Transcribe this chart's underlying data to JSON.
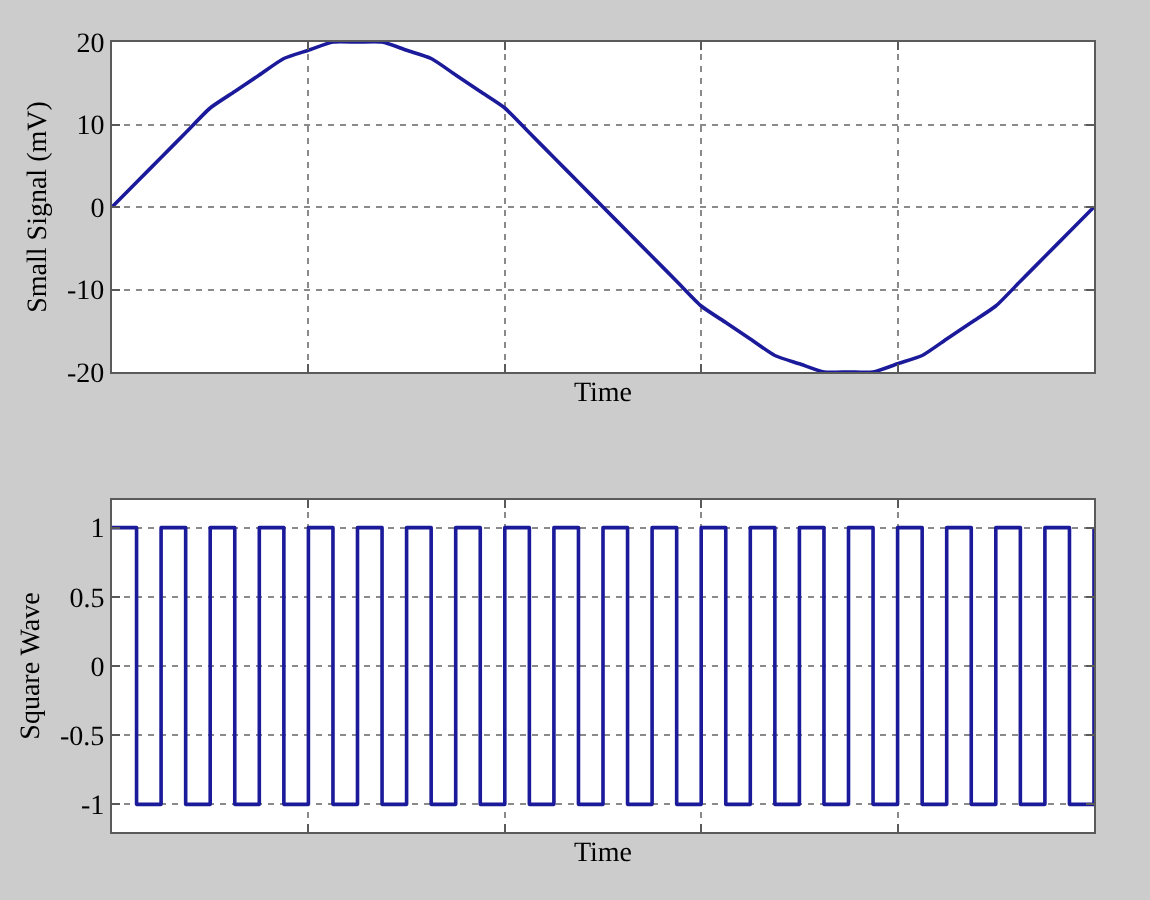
{
  "chart_data": [
    {
      "type": "line",
      "xlabel": "Time",
      "ylabel": "Small Signal (mV)",
      "categories": [
        null,
        null,
        null,
        null,
        null,
        null,
        null,
        null,
        null,
        null,
        null,
        null,
        null,
        null,
        null,
        null,
        null,
        null,
        null,
        null,
        null,
        null,
        null,
        null,
        null,
        null,
        null,
        null,
        null,
        null,
        null,
        null,
        null,
        null,
        null,
        null,
        null,
        null,
        null,
        null,
        null
      ],
      "values": [
        0,
        3,
        6,
        9,
        12,
        14,
        16,
        18,
        19,
        20,
        20,
        20,
        19,
        18,
        16,
        14,
        12,
        9,
        6,
        3,
        0,
        -3,
        -6,
        -9,
        -12,
        -14,
        -16,
        -18,
        -19,
        -20,
        -20,
        -20,
        -19,
        -18,
        -16,
        -14,
        -12,
        -9,
        -6,
        -3,
        0
      ],
      "color": "#1a1a9a",
      "ylim": [
        -20,
        20
      ],
      "yticks": [
        -20,
        -10,
        0,
        10,
        20
      ],
      "grid": true,
      "tick_labels": "y"
    },
    {
      "type": "step",
      "xlabel": "Time",
      "ylabel": "Square Wave",
      "categories": [
        null,
        null,
        null,
        null,
        null,
        null,
        null,
        null,
        null,
        null,
        null,
        null,
        null,
        null,
        null,
        null,
        null,
        null,
        null,
        null,
        null,
        null,
        null,
        null,
        null,
        null,
        null,
        null,
        null,
        null,
        null,
        null,
        null,
        null,
        null,
        null,
        null,
        null,
        null,
        null,
        null
      ],
      "values": [
        1,
        -1,
        1,
        -1,
        1,
        -1,
        1,
        -1,
        1,
        -1,
        1,
        -1,
        1,
        -1,
        1,
        -1,
        1,
        -1,
        1,
        -1,
        1,
        -1,
        1,
        -1,
        1,
        -1,
        1,
        -1,
        1,
        -1,
        1,
        -1,
        1,
        -1,
        1,
        -1,
        1,
        -1,
        1,
        -1,
        1
      ],
      "color": "#1a1a9a",
      "ylim": [
        -1.2,
        1.2
      ],
      "yticks": [
        -1,
        -0.5,
        0,
        0.5,
        1
      ],
      "grid": true,
      "tick_labels": "y"
    }
  ]
}
